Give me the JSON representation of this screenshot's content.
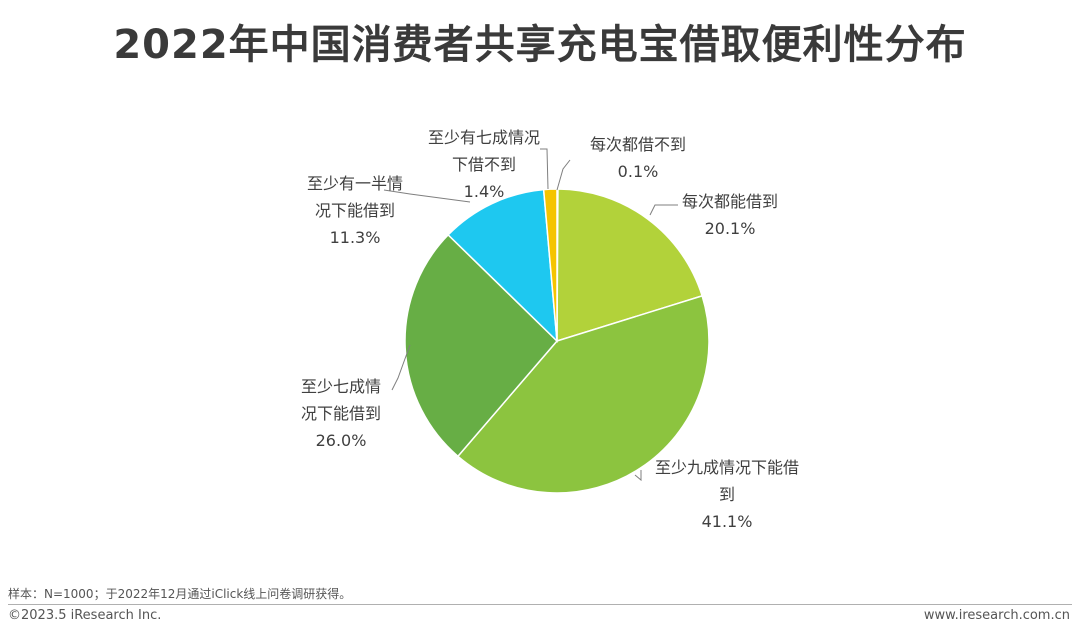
{
  "title": "2022年中国消费者共享充电宝借取便利性分布",
  "footer": {
    "note": "样本：N=1000；于2022年12月通过iClick线上问卷调研获得。",
    "copyright": "©2023.5 iResearch Inc.",
    "website": "www.iresearch.com.cn"
  },
  "chart_data": {
    "type": "pie",
    "start_angle_deg": 0,
    "direction": "clockwise",
    "slices": [
      {
        "lines": [
          "每次都借不到",
          "0.1%"
        ],
        "value": 0.1,
        "color": "#f2cf00"
      },
      {
        "lines": [
          "每次都能借到",
          "20.1%"
        ],
        "value": 20.1,
        "color": "#b2d23a"
      },
      {
        "lines": [
          "至少九成情况下能借",
          "到",
          "41.1%"
        ],
        "value": 41.1,
        "color": "#8cc43f"
      },
      {
        "lines": [
          "至少七成情",
          "况下能借到",
          "26.0%"
        ],
        "value": 26.0,
        "color": "#67ae45"
      },
      {
        "lines": [
          "至少有一半情",
          "况下能借到",
          "11.3%"
        ],
        "value": 11.3,
        "color": "#1ec8f0"
      },
      {
        "lines": [
          "至少有七成情况",
          "下借不到",
          "1.4%"
        ],
        "value": 1.4,
        "color": "#f5c400"
      }
    ]
  }
}
